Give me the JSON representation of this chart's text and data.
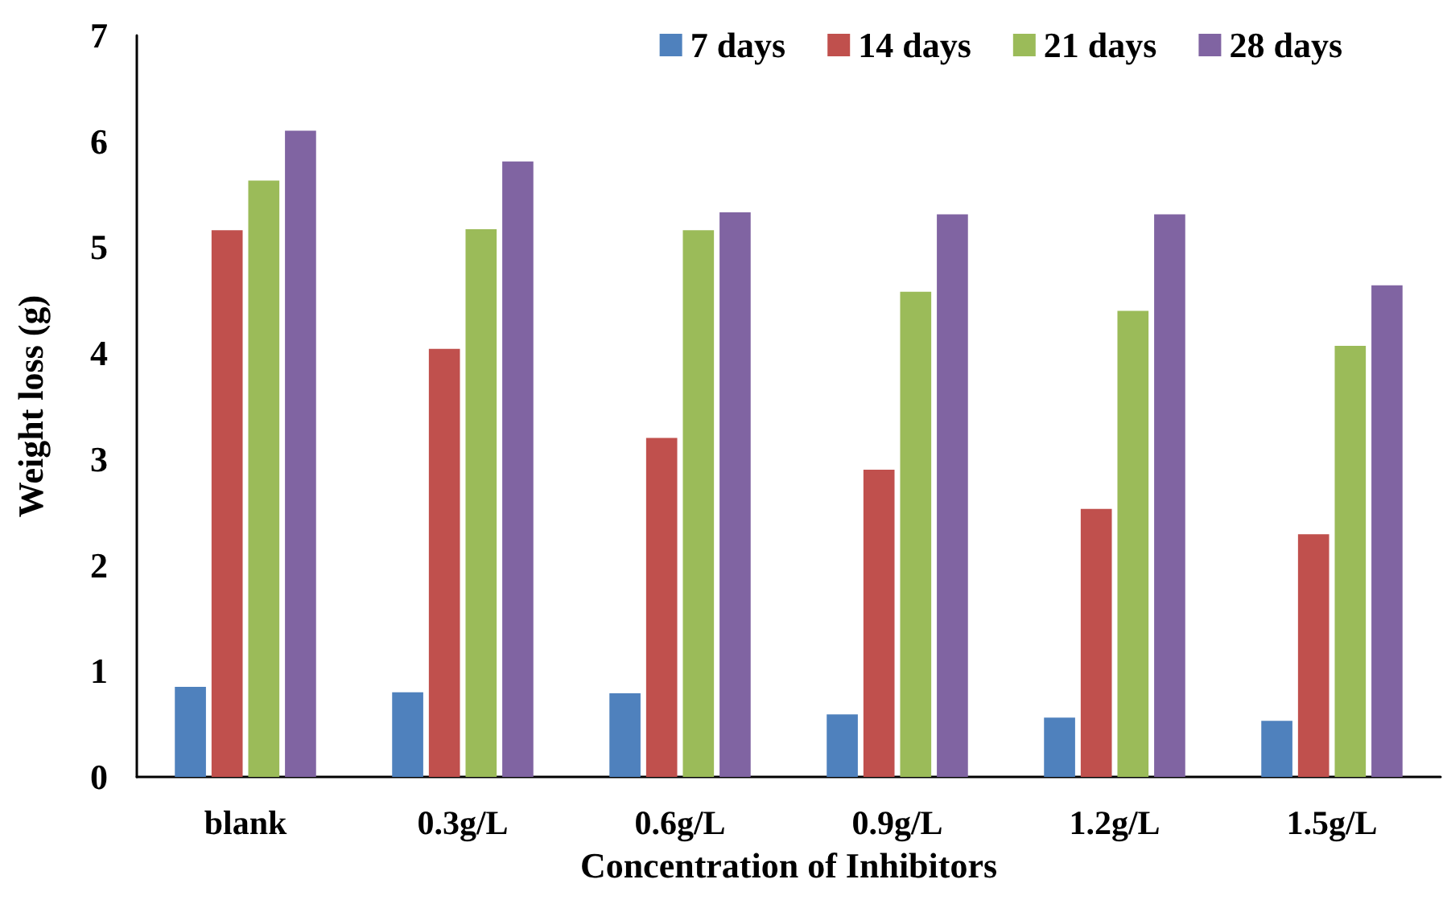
{
  "chart_data": {
    "type": "bar",
    "xlabel": "Concentration of Inhibitors",
    "ylabel": "Weight loss (g)",
    "categories": [
      "blank",
      "0.3g/L",
      "0.6g/L",
      "0.9g/L",
      "1.2g/L",
      "1.5g/L"
    ],
    "series": [
      {
        "name": "7 days",
        "color": "#4f81bd",
        "values": [
          0.85,
          0.8,
          0.79,
          0.59,
          0.56,
          0.53
        ]
      },
      {
        "name": "14 days",
        "color": "#c0504d",
        "values": [
          5.16,
          4.04,
          3.2,
          2.9,
          2.53,
          2.29
        ]
      },
      {
        "name": "21 days",
        "color": "#9bbb59",
        "values": [
          5.63,
          5.17,
          5.16,
          4.58,
          4.4,
          4.07
        ]
      },
      {
        "name": "28 days",
        "color": "#8064a2",
        "values": [
          6.1,
          5.81,
          5.33,
          5.31,
          5.31,
          4.64
        ]
      }
    ],
    "ylim": [
      0,
      7
    ],
    "yticks": [
      0,
      1,
      2,
      3,
      4,
      5,
      6,
      7
    ],
    "grid": false,
    "legend": "top right"
  }
}
